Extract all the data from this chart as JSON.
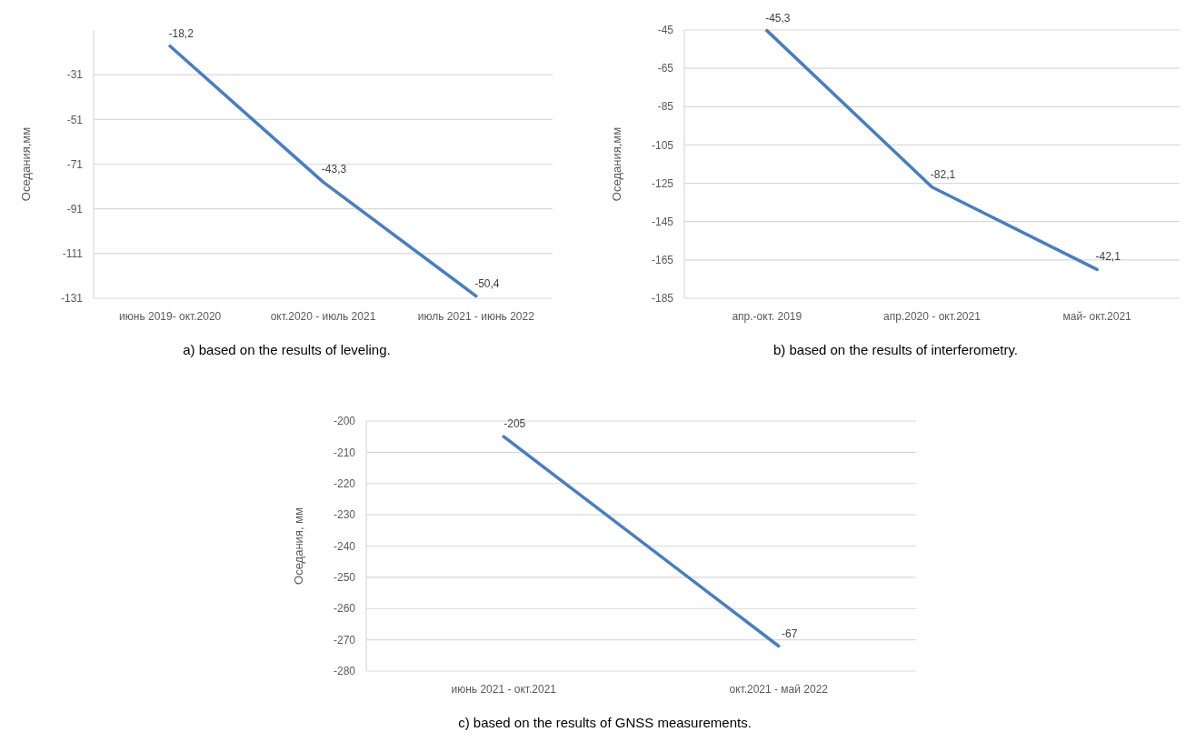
{
  "chart_data": [
    {
      "type": "line",
      "ylabel": "Оседания,мм",
      "categories": [
        "июнь 2019- окт.2020",
        "окт.2020 - июль 2021",
        "июль 2021 - июнь 2022"
      ],
      "series": [
        {
          "color": "#4a7ebb",
          "values": [
            -18.2,
            -79,
            -130
          ]
        }
      ],
      "ylim": [
        -131,
        -11
      ],
      "yticks": [
        -31,
        -51,
        -71,
        -91,
        -111,
        -131
      ],
      "grid": "y",
      "annotations": [
        {
          "text": "-18,2",
          "x": "июнь 2019- окт.2020",
          "y": -18.2
        },
        {
          "text": "-43,3",
          "x": "окт.2020 - июль 2021",
          "y": -79
        },
        {
          "text": "-50,4",
          "x": "июль 2021 - июнь 2022",
          "y": -130
        },
        "a) based on the results of leveling."
      ]
    },
    {
      "type": "line",
      "ylabel": "Оседания,мм",
      "categories": [
        "апр.-окт. 2019",
        "апр.2020 - окт.2021",
        "май- окт.2021"
      ],
      "series": [
        {
          "color": "#4a7ebb",
          "values": [
            -45.3,
            -127,
            -170
          ]
        }
      ],
      "ylim": [
        -185,
        -45
      ],
      "yticks": [
        -45,
        -65,
        -85,
        -105,
        -125,
        -145,
        -165,
        -185
      ],
      "grid": "y",
      "annotations": [
        {
          "text": "-45,3",
          "x": "апр.-окт. 2019",
          "y": -45.3
        },
        {
          "text": "-82,1",
          "x": "апр.2020 - окт.2021",
          "y": -127
        },
        {
          "text": "-42,1",
          "x": "май- окт.2021",
          "y": -170
        },
        "b) based on the results of interferometry."
      ]
    },
    {
      "type": "line",
      "ylabel": "Оседания, мм",
      "categories": [
        "июнь 2021 - окт.2021",
        "окт.2021 - май 2022"
      ],
      "series": [
        {
          "color": "#4a7ebb",
          "values": [
            -205,
            -272
          ]
        }
      ],
      "ylim": [
        -280,
        -200
      ],
      "yticks": [
        -200,
        -210,
        -220,
        -230,
        -240,
        -250,
        -260,
        -270,
        -280
      ],
      "grid": "y",
      "annotations": [
        {
          "text": "-205",
          "x": "июнь 2021 - окт.2021",
          "y": -205
        },
        {
          "text": "-67",
          "x": "окт.2021 - май 2022",
          "y": -272
        },
        "c) based on the results of GNSS measurements."
      ]
    }
  ]
}
